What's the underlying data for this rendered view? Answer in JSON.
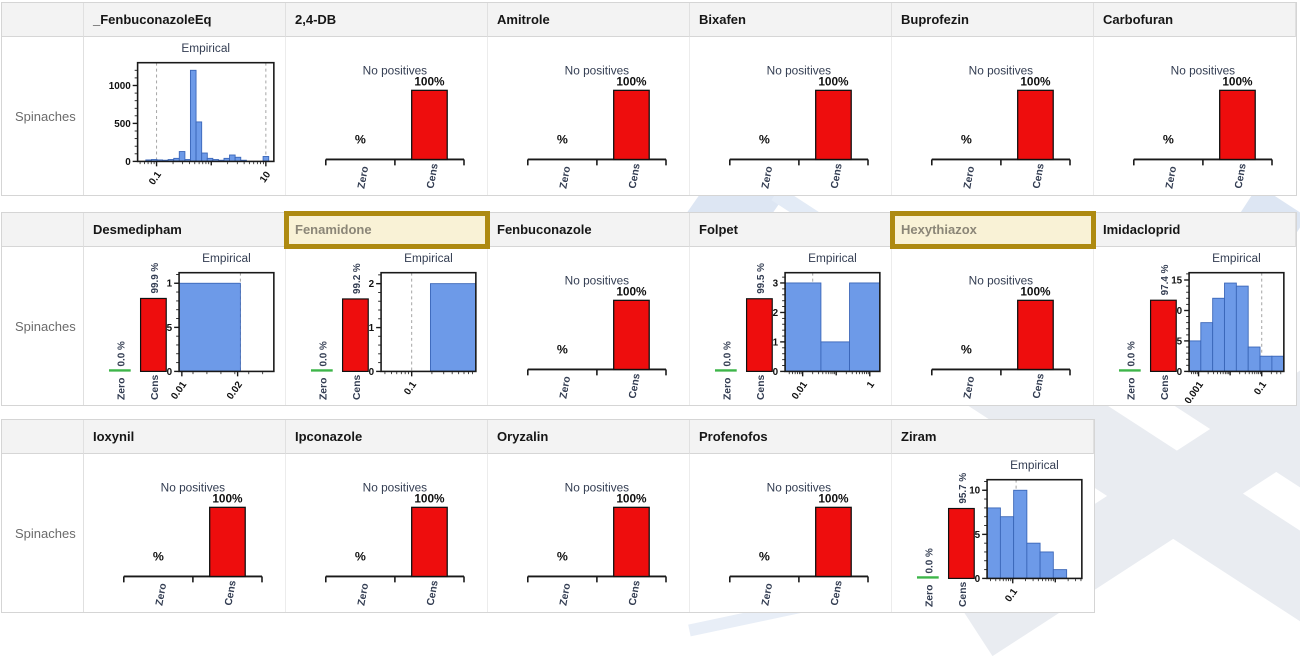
{
  "colors": {
    "bar_blue": "#6d9ae8",
    "bar_blue_edge": "#3a66b8",
    "bar_red": "#ee0d0d",
    "zero_green": "#3db549",
    "chart_label_navy": "#333d52",
    "highlight_border": "#ae8a10",
    "highlight_bg": "#f9f2d6",
    "highlight_text": "#8b8677"
  },
  "chart_data": {
    "type": "trellis",
    "row_label": "Spinaches",
    "tables": [
      {
        "columns": [
          {
            "name": "_FenbuconazoleEq",
            "highlighted": false,
            "chart": {
              "kind": "empirical",
              "title": "Empirical",
              "y": {
                "ticks": [
                  [
                    0,
                    "0"
                  ],
                  [
                    500,
                    "500"
                  ],
                  [
                    1000,
                    "1000"
                  ]
                ],
                "max": 1300
              },
              "x": {
                "scale": "log",
                "min": 0.045,
                "max": 14,
                "ticks": [
                  [
                    0.1,
                    "0.1"
                  ],
                  [
                    1,
                    ""
                  ],
                  [
                    10,
                    "10"
                  ]
                ]
              },
              "dashed": [
                0.1,
                10
              ],
              "bars": {
                "edges": [
                  0.0635,
                  0.0804,
                  0.1017,
                  0.1287,
                  0.1628,
                  0.206,
                  0.2606,
                  0.3297,
                  0.4172,
                  0.5278,
                  0.6679,
                  0.8452,
                  1.0695,
                  1.3535,
                  1.7125,
                  2.1672,
                  2.7416,
                  3.469,
                  4.3893,
                  5.5541,
                  7.0277,
                  8.892,
                  11.252
                ],
                "counts": [
                  20,
                  25,
                  20,
                  15,
                  25,
                  40,
                  130,
                  25,
                  1200,
                  520,
                  110,
                  40,
                  25,
                  15,
                  40,
                  85,
                  55,
                  15,
                  0,
                  0,
                  0,
                  65
                ]
              }
            }
          },
          {
            "name": "2,4-DB",
            "highlighted": false,
            "chart": {
              "kind": "no_positives",
              "title": "No positives",
              "pct": "%",
              "value": "100%",
              "zero_label": "Zero",
              "cens_label": "Cens"
            }
          },
          {
            "name": "Amitrole",
            "highlighted": false,
            "chart": {
              "kind": "no_positives",
              "title": "No positives",
              "pct": "%",
              "value": "100%",
              "zero_label": "Zero",
              "cens_label": "Cens"
            }
          },
          {
            "name": "Bixafen",
            "highlighted": false,
            "chart": {
              "kind": "no_positives",
              "title": "No positives",
              "pct": "%",
              "value": "100%",
              "zero_label": "Zero",
              "cens_label": "Cens"
            }
          },
          {
            "name": "Buprofezin",
            "highlighted": false,
            "chart": {
              "kind": "no_positives",
              "title": "No positives",
              "pct": "%",
              "value": "100%",
              "zero_label": "Zero",
              "cens_label": "Cens"
            }
          },
          {
            "name": "Carbofuran",
            "highlighted": false,
            "chart": {
              "kind": "no_positives",
              "title": "No positives",
              "pct": "%",
              "value": "100%",
              "zero_label": "Zero",
              "cens_label": "Cens"
            }
          }
        ]
      },
      {
        "columns": [
          {
            "name": "Desmedipham",
            "highlighted": false,
            "chart": {
              "kind": "cens_empirical",
              "title": "Empirical",
              "zero_label": "Zero",
              "zero_value": "0.0 %",
              "cens_label": "Cens",
              "cens_value": "99.9 %",
              "cens_pct": 99.9,
              "y": {
                "ticks": [
                  [
                    0,
                    "0"
                  ],
                  [
                    0.5,
                    "0.5"
                  ],
                  [
                    1,
                    "1"
                  ]
                ],
                "max": 1.12
              },
              "x": {
                "scale": "linear",
                "min": 0.0095,
                "max": 0.0265,
                "minor_step": 0.0025,
                "ticks": [
                  [
                    0.01,
                    "0.01"
                  ],
                  [
                    0.02,
                    "0.02"
                  ]
                ]
              },
              "dashed": [
                0.0205
              ],
              "bars": {
                "edges": [
                  0.0095,
                  0.0205
                ],
                "counts": [
                  1
                ]
              }
            }
          },
          {
            "name": "Fenamidone",
            "highlighted": true,
            "chart": {
              "kind": "cens_empirical",
              "title": "Empirical",
              "zero_label": "Zero",
              "zero_value": "0.0 %",
              "cens_label": "Cens",
              "cens_value": "99.2 %",
              "cens_pct": 99.2,
              "y": {
                "ticks": [
                  [
                    0,
                    "0"
                  ],
                  [
                    1,
                    "1"
                  ],
                  [
                    2,
                    "2"
                  ]
                ],
                "max": 2.25
              },
              "x": {
                "scale": "log",
                "min": 0.035,
                "max": 0.9,
                "ticks": [
                  [
                    0.1,
                    "0.1"
                  ]
                ]
              },
              "dashed": [
                0.1
              ],
              "bars": {
                "edges": [
                  0.19,
                  0.9
                ],
                "counts": [
                  2
                ]
              }
            }
          },
          {
            "name": "Fenbuconazole",
            "highlighted": false,
            "chart": {
              "kind": "no_positives",
              "title": "No positives",
              "pct": "%",
              "value": "100%",
              "zero_label": "Zero",
              "cens_label": "Cens"
            }
          },
          {
            "name": "Folpet",
            "highlighted": false,
            "chart": {
              "kind": "cens_empirical",
              "title": "Empirical",
              "zero_label": "Zero",
              "zero_value": "0.0 %",
              "cens_label": "Cens",
              "cens_value": "99.5 %",
              "cens_pct": 99.5,
              "y": {
                "ticks": [
                  [
                    0,
                    "0"
                  ],
                  [
                    1,
                    "1"
                  ],
                  [
                    2,
                    "2"
                  ],
                  [
                    3,
                    "3"
                  ]
                ],
                "max": 3.35
              },
              "x": {
                "scale": "log",
                "min": 0.003,
                "max": 2,
                "ticks": [
                  [
                    0.01,
                    "0.01"
                  ],
                  [
                    0.1,
                    ""
                  ],
                  [
                    1,
                    "1"
                  ]
                ]
              },
              "dashed": [
                0.02
              ],
              "bars": {
                "edges": [
                  0.003,
                  0.035,
                  0.25,
                  2
                ],
                "counts": [
                  3,
                  1,
                  3
                ]
              }
            }
          },
          {
            "name": "Hexythiazox",
            "highlighted": true,
            "chart": {
              "kind": "no_positives",
              "title": "No positives",
              "pct": "%",
              "value": "100%",
              "zero_label": "Zero",
              "cens_label": "Cens"
            }
          },
          {
            "name": "Imidacloprid",
            "highlighted": false,
            "chart": {
              "kind": "cens_empirical",
              "title": "Empirical",
              "zero_label": "Zero",
              "zero_value": "0.0 %",
              "cens_label": "Cens",
              "cens_value": "97.4 %",
              "cens_pct": 97.4,
              "y": {
                "ticks": [
                  [
                    0,
                    "0"
                  ],
                  [
                    5,
                    "5"
                  ],
                  [
                    10,
                    "10"
                  ],
                  [
                    15,
                    "15"
                  ]
                ],
                "max": 16.2
              },
              "x": {
                "scale": "log",
                "min": 0.0005,
                "max": 0.5,
                "ticks": [
                  [
                    0.001,
                    "0.001"
                  ],
                  [
                    0.01,
                    ""
                  ],
                  [
                    0.1,
                    "0.1"
                  ]
                ]
              },
              "dashed": [
                0.1
              ],
              "bars": {
                "edges": [
                  0.0005,
                  0.00118,
                  0.0028,
                  0.0066,
                  0.0157,
                  0.0372,
                  0.088,
                  0.209,
                  0.495
                ],
                "counts": [
                  5,
                  8,
                  12,
                  14.5,
                  14,
                  4,
                  2.5,
                  2.5
                ]
              }
            }
          }
        ]
      },
      {
        "columns": [
          {
            "name": "Ioxynil",
            "highlighted": false,
            "chart": {
              "kind": "no_positives",
              "title": "No positives",
              "pct": "%",
              "value": "100%",
              "zero_label": "Zero",
              "cens_label": "Cens"
            }
          },
          {
            "name": "Ipconazole",
            "highlighted": false,
            "chart": {
              "kind": "no_positives",
              "title": "No positives",
              "pct": "%",
              "value": "100%",
              "zero_label": "Zero",
              "cens_label": "Cens"
            }
          },
          {
            "name": "Oryzalin",
            "highlighted": false,
            "chart": {
              "kind": "no_positives",
              "title": "No positives",
              "pct": "%",
              "value": "100%",
              "zero_label": "Zero",
              "cens_label": "Cens"
            }
          },
          {
            "name": "Profenofos",
            "highlighted": false,
            "chart": {
              "kind": "no_positives",
              "title": "No positives",
              "pct": "%",
              "value": "100%",
              "zero_label": "Zero",
              "cens_label": "Cens"
            }
          },
          {
            "name": "Ziram",
            "highlighted": false,
            "chart": {
              "kind": "cens_empirical",
              "title": "Empirical",
              "zero_label": "Zero",
              "zero_value": "0.0 %",
              "cens_label": "Cens",
              "cens_value": "95.7 %",
              "cens_pct": 95.7,
              "y": {
                "ticks": [
                  [
                    0,
                    "0"
                  ],
                  [
                    5,
                    "5"
                  ],
                  [
                    10,
                    "10"
                  ]
                ],
                "max": 11.2
              },
              "x": {
                "scale": "log",
                "min": 0.025,
                "max": 4.2,
                "ticks": [
                  [
                    0.1,
                    "0.1"
                  ],
                  [
                    1,
                    ""
                  ]
                ]
              },
              "dashed": [
                0.12
              ],
              "bars": {
                "edges": [
                  0.025,
                  0.0513,
                  0.105,
                  0.215,
                  0.44,
                  0.9,
                  1.85
                ],
                "counts": [
                  8,
                  7,
                  10,
                  4,
                  3,
                  1
                ]
              }
            }
          }
        ]
      }
    ]
  }
}
